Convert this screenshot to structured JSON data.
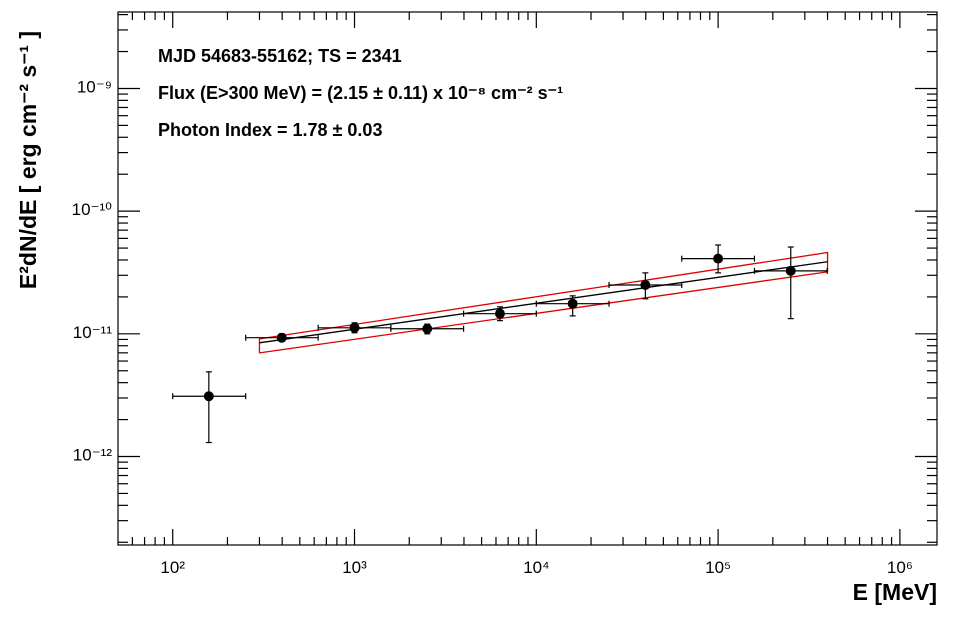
{
  "chart_data": {
    "type": "scatter",
    "annotations": [
      "MJD 54683-55162;  TS = 2341",
      "Flux (E>300 MeV) = (2.15 ± 0.11) x 10⁻⁸ cm⁻² s⁻¹",
      "Photon Index = 1.78 ± 0.03"
    ],
    "x_label": "E [MeV]",
    "y_label": "E²dN/dE [ erg cm⁻² s⁻¹ ]",
    "log_x": true,
    "log_y": true,
    "minor_ticks": true,
    "xlim": [
      50,
      1600000
    ],
    "ylim": [
      1.9e-13,
      4.2e-09
    ],
    "xticks": [
      {
        "value": 100,
        "label": "10²"
      },
      {
        "value": 1000,
        "label": "10³"
      },
      {
        "value": 10000,
        "label": "10⁴"
      },
      {
        "value": 100000,
        "label": "10⁵"
      },
      {
        "value": 1000000,
        "label": "10⁶"
      }
    ],
    "yticks": [
      {
        "value": 1e-12,
        "label": "10⁻¹²"
      },
      {
        "value": 1e-11,
        "label": "10⁻¹¹"
      },
      {
        "value": 1e-10,
        "label": "10⁻¹⁰"
      },
      {
        "value": 1e-09,
        "label": "10⁻⁹"
      }
    ],
    "series": [
      {
        "color": "#000000",
        "x": [
          158,
          398,
          1000,
          2512,
          6310,
          15850,
          39800,
          100000,
          251000
        ],
        "y": [
          3.1e-12,
          9.3e-12,
          1.12e-11,
          1.1e-11,
          1.46e-11,
          1.76e-11,
          2.5e-11,
          4.1e-11,
          3.26e-11
        ],
        "x_lower": [
          100,
          252,
          631,
          1585,
          3981,
          10000,
          25120,
          63100,
          158500
        ],
        "x_upper": [
          252,
          631,
          1585,
          3981,
          10000,
          25120,
          63100,
          158500,
          398100
        ],
        "y_lower": [
          1.3e-12,
          8.7e-12,
          1.02e-11,
          1e-11,
          1.28e-11,
          1.4e-11,
          1.93e-11,
          3.14e-11,
          1.33e-11
        ],
        "y_upper": [
          4.9e-12,
          1e-11,
          1.23e-11,
          1.2e-11,
          1.66e-11,
          2.04e-11,
          3.14e-11,
          5.3e-11,
          5.1e-11
        ]
      }
    ],
    "fit": {
      "color": "#000000",
      "x": [
        300,
        400000
      ],
      "y": [
        8.45e-12,
        3.87e-11
      ]
    },
    "band": {
      "color": "#e00000",
      "x": [
        300,
        400000
      ],
      "lower": [
        7e-12,
        3.2e-11
      ],
      "upper": [
        9.1e-12,
        4.6e-11
      ]
    }
  }
}
